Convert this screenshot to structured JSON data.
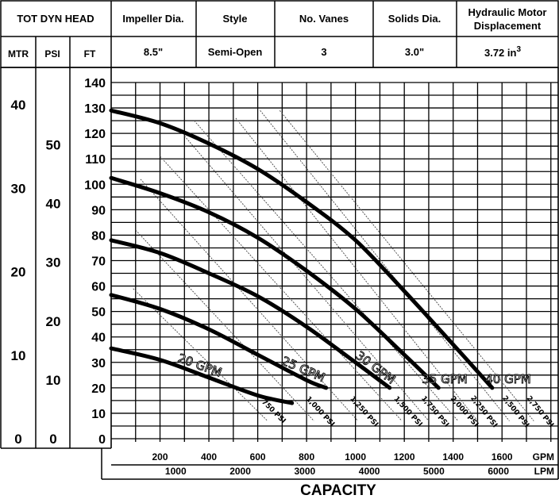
{
  "table": {
    "head_label": "TOT DYN HEAD",
    "units": [
      "MTR",
      "PSI",
      "FT"
    ],
    "columns": [
      {
        "header": "Impeller Dia.",
        "value": "8.5\""
      },
      {
        "header": "Style",
        "value": "Semi-Open"
      },
      {
        "header": "No. Vanes",
        "value": "3"
      },
      {
        "header": "Solids Dia.",
        "value": "3.0\""
      },
      {
        "header": "Hydraulic Motor Displacement",
        "header_line1": "Hydraulic Motor",
        "header_line2": "Displacement",
        "value_main": "3.72 in",
        "value_sup": "3"
      }
    ]
  },
  "chart_data": {
    "type": "line",
    "xlabel": "CAPACITY",
    "x_units": [
      "GPM",
      "LPM"
    ],
    "x_ticks_gpm": [
      200,
      400,
      600,
      800,
      1000,
      1200,
      1400,
      1600
    ],
    "x_ticks_lpm": [
      1000,
      2000,
      3000,
      4000,
      5000,
      6000
    ],
    "xlim_gpm": [
      0,
      1830
    ],
    "ylim_ft": [
      0,
      140
    ],
    "y_ticks_ft": [
      0,
      10,
      20,
      30,
      40,
      50,
      60,
      70,
      80,
      90,
      100,
      110,
      120,
      130,
      140
    ],
    "y_ticks_psi": [
      0,
      10,
      20,
      30,
      40,
      50
    ],
    "y_ticks_mtr": [
      0,
      10,
      20,
      30,
      40
    ],
    "grid": true,
    "series": [
      {
        "name": "20 GPM",
        "label": "20 GPM",
        "x": [
          0,
          200,
          400,
          600,
          740
        ],
        "y": [
          35.5,
          31,
          24,
          17,
          14
        ]
      },
      {
        "name": "25 GPM",
        "label": "25 GPM",
        "x": [
          0,
          200,
          400,
          600,
          800,
          880
        ],
        "y": [
          56.5,
          51,
          43,
          33,
          23,
          20
        ]
      },
      {
        "name": "30 GPM",
        "label": "30 GPM",
        "x": [
          0,
          200,
          400,
          600,
          800,
          1000,
          1140
        ],
        "y": [
          78,
          73,
          65,
          56,
          44,
          30,
          20
        ]
      },
      {
        "name": "35 GPM",
        "label": "35 GPM",
        "x": [
          0,
          200,
          400,
          600,
          800,
          1000,
          1200,
          1340
        ],
        "y": [
          102.5,
          96.5,
          89,
          79,
          66,
          51,
          33,
          20
        ]
      },
      {
        "name": "40 GPM",
        "label": "40 GPM",
        "x": [
          0,
          200,
          400,
          600,
          800,
          1000,
          1200,
          1400,
          1560
        ],
        "y": [
          129,
          124,
          116,
          106,
          93,
          78,
          58,
          37,
          20
        ]
      }
    ],
    "pressure_lines": [
      {
        "label": "750 PSI",
        "x": [
          90,
          640
        ],
        "y": [
          59,
          7
        ]
      },
      {
        "label": "1,000 PSI",
        "x": [
          100,
          830
        ],
        "y": [
          82,
          7
        ]
      },
      {
        "label": "1,250 PSI",
        "x": [
          120,
          1010
        ],
        "y": [
          102,
          7
        ]
      },
      {
        "label": "1,500 PSI",
        "x": [
          200,
          1190
        ],
        "y": [
          111,
          7
        ]
      },
      {
        "label": "1,750 PSI",
        "x": [
          300,
          1300
        ],
        "y": [
          119,
          7
        ]
      },
      {
        "label": "2,000 PSI",
        "x": [
          340,
          1420
        ],
        "y": [
          125,
          7
        ]
      },
      {
        "label": "2,250 PSI",
        "x": [
          510,
          1500
        ],
        "y": [
          126,
          7
        ]
      },
      {
        "label": "2,500 PSI",
        "x": [
          610,
          1630
        ],
        "y": [
          129,
          7
        ]
      },
      {
        "label": "2,750 PSI",
        "x": [
          690,
          1730
        ],
        "y": [
          129,
          7
        ]
      }
    ]
  }
}
